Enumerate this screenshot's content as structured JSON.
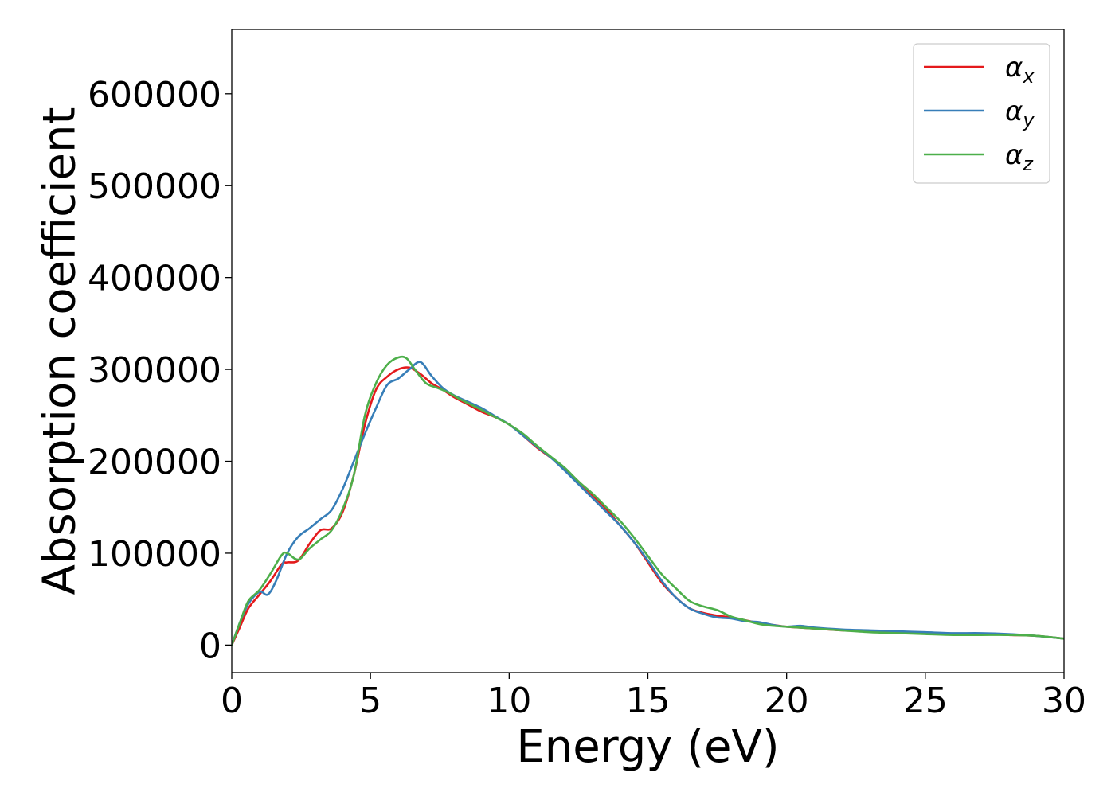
{
  "chart_data": {
    "type": "line",
    "title": "",
    "xlabel": "Energy (eV)",
    "ylabel": "Absorption coefficient",
    "xlim": [
      0,
      30
    ],
    "ylim": [
      -30000,
      670000
    ],
    "xticks": [
      0,
      5,
      10,
      15,
      20,
      25,
      30
    ],
    "yticks": [
      0,
      100000,
      200000,
      300000,
      400000,
      500000,
      600000
    ],
    "grid": false,
    "legend_position": "top-right",
    "series": [
      {
        "name": "α",
        "subscript": "x",
        "color": "#e41a1c",
        "x": [
          0,
          0.3,
          0.6,
          1.0,
          1.4,
          1.8,
          2.0,
          2.4,
          2.8,
          3.2,
          3.6,
          4.0,
          4.4,
          4.8,
          5.2,
          5.6,
          6.0,
          6.4,
          6.8,
          7.2,
          7.6,
          8.0,
          8.5,
          9.0,
          9.5,
          10.0,
          10.5,
          11.0,
          11.5,
          12.0,
          12.5,
          13.0,
          13.5,
          14.0,
          14.5,
          15.0,
          15.5,
          16.0,
          16.5,
          17.0,
          17.5,
          18.0,
          18.5,
          19.0,
          19.5,
          20.0,
          21.0,
          22.0,
          23.0,
          24.0,
          25.0,
          26.0,
          27.0,
          28.0,
          29.0,
          30.0
        ],
        "y": [
          0,
          20000,
          40000,
          55000,
          70000,
          88000,
          90000,
          92000,
          110000,
          125000,
          127000,
          145000,
          185000,
          240000,
          278000,
          292000,
          300000,
          302000,
          295000,
          285000,
          278000,
          270000,
          262000,
          254000,
          248000,
          240000,
          228000,
          215000,
          204000,
          192000,
          178000,
          163000,
          148000,
          130000,
          112000,
          90000,
          68000,
          52000,
          40000,
          35000,
          32000,
          30000,
          27000,
          24000,
          22000,
          20000,
          18000,
          16000,
          15000,
          14000,
          13000,
          12000,
          12000,
          11000,
          10000,
          7000
        ]
      },
      {
        "name": "α",
        "subscript": "y",
        "color": "#377eb8",
        "x": [
          0,
          0.3,
          0.6,
          1.0,
          1.3,
          1.6,
          2.0,
          2.4,
          2.8,
          3.2,
          3.6,
          4.0,
          4.4,
          4.8,
          5.2,
          5.6,
          6.0,
          6.4,
          6.8,
          7.2,
          7.6,
          8.0,
          8.5,
          9.0,
          9.5,
          10.0,
          10.5,
          11.0,
          11.5,
          12.0,
          12.5,
          13.0,
          13.5,
          14.0,
          14.5,
          15.0,
          15.5,
          16.0,
          16.5,
          17.0,
          17.5,
          18.0,
          18.5,
          19.0,
          19.5,
          20.0,
          20.5,
          21.0,
          22.0,
          23.0,
          24.0,
          25.0,
          26.0,
          27.0,
          28.0,
          29.0,
          30.0
        ],
        "y": [
          0,
          25000,
          45000,
          58000,
          55000,
          70000,
          100000,
          118000,
          127000,
          137000,
          147000,
          170000,
          200000,
          230000,
          258000,
          283000,
          290000,
          300000,
          308000,
          293000,
          280000,
          272000,
          265000,
          258000,
          249000,
          240000,
          228000,
          216000,
          204000,
          190000,
          175000,
          160000,
          145000,
          130000,
          112000,
          92000,
          70000,
          52000,
          40000,
          34000,
          30000,
          29000,
          26000,
          25000,
          22000,
          20000,
          21000,
          19000,
          17000,
          16000,
          15000,
          14000,
          13000,
          13000,
          12000,
          10000,
          7000
        ]
      },
      {
        "name": "α",
        "subscript": "z",
        "color": "#4daf4a",
        "x": [
          0,
          0.3,
          0.6,
          1.0,
          1.4,
          1.8,
          2.0,
          2.4,
          2.8,
          3.2,
          3.6,
          4.0,
          4.4,
          4.8,
          5.2,
          5.6,
          6.0,
          6.3,
          6.6,
          7.0,
          7.4,
          7.8,
          8.2,
          8.6,
          9.0,
          9.5,
          10.0,
          10.5,
          11.0,
          11.5,
          12.0,
          12.5,
          13.0,
          13.5,
          14.0,
          14.5,
          15.0,
          15.5,
          16.0,
          16.5,
          17.0,
          17.5,
          18.0,
          18.5,
          19.0,
          19.5,
          20.0,
          21.0,
          22.0,
          23.0,
          24.0,
          25.0,
          26.0,
          27.0,
          28.0,
          29.0,
          30.0
        ],
        "y": [
          0,
          25000,
          48000,
          60000,
          78000,
          98000,
          100000,
          93000,
          105000,
          115000,
          125000,
          148000,
          185000,
          250000,
          285000,
          305000,
          313000,
          312000,
          300000,
          285000,
          280000,
          275000,
          268000,
          262000,
          256000,
          248000,
          240000,
          230000,
          217000,
          205000,
          193000,
          178000,
          165000,
          150000,
          135000,
          117000,
          97000,
          77000,
          62000,
          48000,
          42000,
          38000,
          31000,
          27000,
          23000,
          21000,
          20000,
          18000,
          16000,
          14000,
          13000,
          12000,
          11000,
          11000,
          11000,
          10000,
          7000
        ]
      }
    ]
  }
}
